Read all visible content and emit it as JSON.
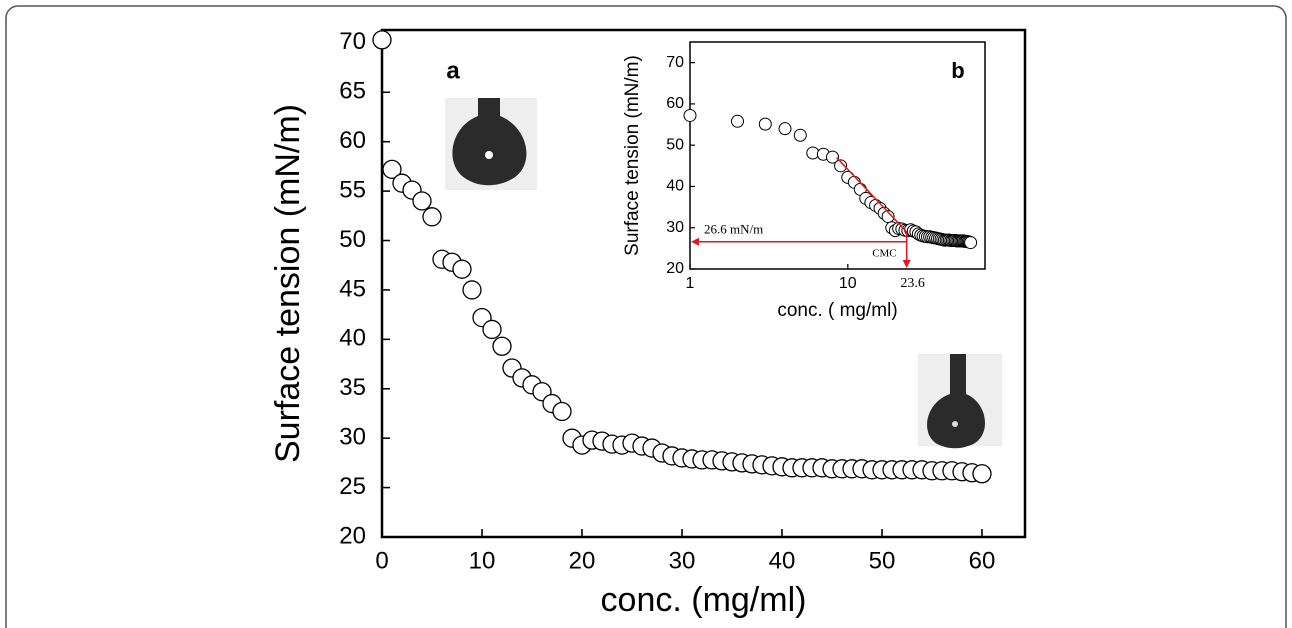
{
  "chart_data": [
    {
      "type": "scatter",
      "panel_label": "a",
      "x_label": "conc. (mg/ml)",
      "y_label": "Surface tension (mN/m)",
      "x": [
        0,
        1,
        2,
        3,
        4,
        5,
        6,
        7,
        8,
        9,
        10,
        11,
        12,
        13,
        14,
        15,
        16,
        17,
        18,
        19,
        20,
        21,
        22,
        23,
        24,
        25,
        26,
        27,
        28,
        29,
        30,
        31,
        32,
        33,
        34,
        35,
        36,
        37,
        38,
        39,
        40,
        41,
        42,
        43,
        44,
        45,
        46,
        47,
        48,
        49,
        50,
        51,
        52,
        53,
        54,
        55,
        56,
        57,
        58,
        59,
        60
      ],
      "values": [
        70.3,
        57.2,
        55.8,
        55.1,
        54.0,
        52.4,
        48.1,
        47.8,
        47.1,
        45.0,
        42.2,
        41.0,
        39.3,
        37.1,
        36.1,
        35.4,
        34.7,
        33.5,
        32.7,
        30.0,
        29.3,
        29.8,
        29.7,
        29.4,
        29.3,
        29.5,
        29.2,
        29.0,
        28.5,
        28.2,
        28.0,
        27.9,
        27.8,
        27.8,
        27.7,
        27.6,
        27.5,
        27.4,
        27.3,
        27.2,
        27.1,
        27.0,
        27.0,
        27.0,
        27.0,
        26.9,
        26.9,
        26.9,
        26.9,
        26.8,
        26.8,
        26.8,
        26.8,
        26.8,
        26.8,
        26.7,
        26.7,
        26.7,
        26.6,
        26.5,
        26.4
      ],
      "xlim": [
        0,
        64.3
      ],
      "ylim": [
        20,
        71.3
      ],
      "xticks": [
        0,
        10,
        20,
        30,
        40,
        50,
        60
      ],
      "yticks": [
        20,
        25,
        30,
        35,
        40,
        45,
        50,
        55,
        60,
        65,
        70
      ]
    },
    {
      "type": "scatter",
      "panel_label": "b",
      "log_x": true,
      "x_label": "conc. ( mg/ml)",
      "y_label": "Surface tension (mN/m)",
      "x": [
        1,
        2,
        3,
        4,
        5,
        6,
        7,
        8,
        9,
        10,
        11,
        12,
        13,
        14,
        15,
        16,
        17,
        18,
        19,
        20,
        21,
        22,
        23,
        24,
        25,
        26,
        27,
        28,
        29,
        30,
        31,
        32,
        33,
        34,
        35,
        36,
        37,
        38,
        39,
        40,
        41,
        42,
        43,
        44,
        45,
        46,
        47,
        48,
        49,
        50,
        51,
        52,
        53,
        54,
        55,
        56,
        57,
        58,
        59,
        60
      ],
      "values": [
        57.2,
        55.8,
        55.1,
        54.0,
        52.4,
        48.1,
        47.8,
        47.1,
        45.0,
        42.2,
        41.0,
        39.3,
        37.1,
        36.1,
        35.4,
        34.7,
        33.5,
        32.7,
        30.0,
        29.3,
        29.8,
        29.7,
        29.4,
        29.3,
        29.5,
        29.2,
        29.0,
        28.5,
        28.2,
        28.0,
        27.9,
        27.8,
        27.8,
        27.7,
        27.6,
        27.5,
        27.4,
        27.3,
        27.2,
        27.1,
        27.0,
        27.0,
        27.0,
        27.0,
        26.9,
        26.9,
        26.9,
        26.9,
        26.8,
        26.8,
        26.8,
        26.8,
        26.8,
        26.8,
        26.7,
        26.7,
        26.7,
        26.6,
        26.5,
        26.4
      ],
      "xlim": [
        1,
        74
      ],
      "ylim": [
        20,
        75
      ],
      "xticks": [
        1,
        10
      ],
      "yticks": [
        20,
        30,
        40,
        50,
        60,
        70
      ],
      "fit": {
        "color": "#e8141c",
        "x": [
          8.5,
          23.6
        ],
        "values": [
          47,
          29
        ]
      },
      "cmc": {
        "x": 23.6,
        "y": 26.6,
        "y_label": "26.6 mN/m",
        "label": "CMC",
        "color": "#e8141c"
      }
    }
  ]
}
